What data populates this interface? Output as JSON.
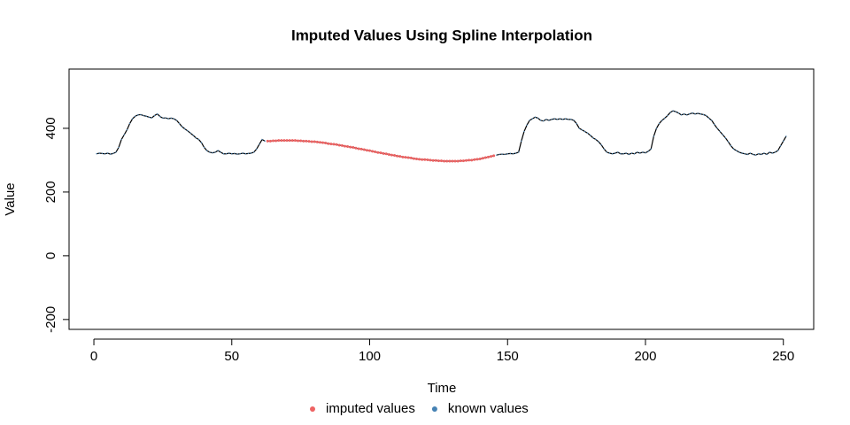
{
  "chart_data": {
    "type": "line",
    "title": "Imputed Values Using Spline Interpolation",
    "x_label": "Time",
    "y_label": "Value",
    "xlim": [
      -9,
      261
    ],
    "ylim": [
      -231,
      586
    ],
    "xticks": [
      0,
      50,
      100,
      150,
      200,
      250
    ],
    "yticks": [
      -200,
      0,
      200,
      400
    ],
    "line_color": "#000000",
    "legend": "bottom",
    "x": [
      1,
      2,
      3,
      4,
      5,
      6,
      7,
      8,
      9,
      10,
      11,
      12,
      13,
      14,
      15,
      16,
      17,
      18,
      19,
      20,
      21,
      22,
      23,
      24,
      25,
      26,
      27,
      28,
      29,
      30,
      31,
      32,
      33,
      34,
      35,
      36,
      37,
      38,
      39,
      40,
      41,
      42,
      43,
      44,
      45,
      46,
      47,
      48,
      49,
      50,
      51,
      52,
      53,
      54,
      55,
      56,
      57,
      58,
      59,
      60,
      61,
      62,
      63,
      64,
      65,
      66,
      67,
      68,
      69,
      70,
      71,
      72,
      73,
      74,
      75,
      76,
      77,
      78,
      79,
      80,
      81,
      82,
      83,
      84,
      85,
      86,
      87,
      88,
      89,
      90,
      91,
      92,
      93,
      94,
      95,
      96,
      97,
      98,
      99,
      100,
      101,
      102,
      103,
      104,
      105,
      106,
      107,
      108,
      109,
      110,
      111,
      112,
      113,
      114,
      115,
      116,
      117,
      118,
      119,
      120,
      121,
      122,
      123,
      124,
      125,
      126,
      127,
      128,
      129,
      130,
      131,
      132,
      133,
      134,
      135,
      136,
      137,
      138,
      139,
      140,
      141,
      142,
      143,
      144,
      145,
      146,
      147,
      148,
      149,
      150,
      151,
      152,
      153,
      154,
      155,
      156,
      157,
      158,
      159,
      160,
      161,
      162,
      163,
      164,
      165,
      166,
      167,
      168,
      169,
      170,
      171,
      172,
      173,
      174,
      175,
      176,
      177,
      178,
      179,
      180,
      181,
      182,
      183,
      184,
      185,
      186,
      187,
      188,
      189,
      190,
      191,
      192,
      193,
      194,
      195,
      196,
      197,
      198,
      199,
      200,
      201,
      202,
      203,
      204,
      205,
      206,
      207,
      208,
      209,
      210,
      211,
      212,
      213,
      214,
      215,
      216,
      217,
      218,
      219,
      220,
      221,
      222,
      223,
      224,
      225,
      226,
      227,
      228,
      229,
      230,
      231,
      232,
      233,
      234,
      235,
      236,
      237,
      238,
      239,
      240,
      241,
      242,
      243,
      244,
      245,
      246,
      247,
      248,
      249,
      250,
      251
    ],
    "series": [
      {
        "name": "imputed values",
        "color": "#EE6363",
        "values": [
          null,
          null,
          null,
          null,
          null,
          null,
          null,
          null,
          null,
          null,
          null,
          null,
          null,
          null,
          null,
          null,
          null,
          null,
          null,
          null,
          null,
          null,
          null,
          null,
          null,
          null,
          null,
          null,
          null,
          null,
          null,
          null,
          null,
          null,
          null,
          null,
          null,
          null,
          null,
          null,
          null,
          null,
          null,
          null,
          null,
          null,
          null,
          null,
          null,
          null,
          null,
          null,
          null,
          null,
          null,
          null,
          null,
          null,
          null,
          null,
          null,
          null,
          360,
          360,
          361,
          361,
          362,
          362,
          362,
          362,
          362,
          362,
          362,
          361,
          361,
          360,
          360,
          359,
          358,
          358,
          357,
          356,
          355,
          354,
          352,
          351,
          350,
          349,
          347,
          346,
          344,
          343,
          341,
          340,
          338,
          336,
          335,
          333,
          331,
          330,
          328,
          326,
          324,
          323,
          321,
          320,
          318,
          316,
          315,
          313,
          312,
          310,
          309,
          308,
          307,
          305,
          304,
          303,
          302,
          302,
          301,
          300,
          299,
          299,
          298,
          298,
          297,
          297,
          297,
          297,
          297,
          297,
          298,
          298,
          299,
          300,
          300,
          302,
          303,
          304,
          306,
          308,
          310,
          312,
          314,
          null,
          null,
          null,
          null,
          null,
          null,
          null,
          null,
          null,
          null,
          null,
          null,
          null,
          null,
          null,
          null,
          null,
          null,
          null,
          null,
          null,
          null,
          null,
          null,
          null,
          null,
          null,
          null,
          null,
          null,
          null,
          null,
          null,
          null,
          null,
          null,
          null,
          null,
          null,
          null,
          null,
          null,
          null,
          null,
          null,
          null,
          null,
          null,
          null,
          null,
          null,
          null,
          null,
          null,
          null,
          null,
          null,
          null,
          null,
          null,
          null,
          null,
          null,
          null,
          null,
          null,
          null,
          null,
          null,
          null,
          null,
          null,
          null,
          null,
          null,
          null,
          null,
          null,
          null,
          null,
          null,
          null,
          null,
          null,
          null,
          null,
          null,
          null,
          null,
          null,
          null,
          null,
          null,
          null,
          null,
          null,
          null,
          null,
          null,
          null,
          null,
          null,
          null,
          null,
          null,
          null
        ]
      },
      {
        "name": "known values",
        "color": "#4682B4",
        "values": [
          320,
          322,
          321,
          320,
          322,
          319,
          321,
          325,
          340,
          365,
          380,
          395,
          415,
          430,
          438,
          442,
          443,
          440,
          438,
          435,
          433,
          440,
          445,
          437,
          432,
          433,
          430,
          432,
          430,
          425,
          415,
          405,
          398,
          392,
          385,
          378,
          370,
          365,
          355,
          340,
          330,
          325,
          323,
          325,
          330,
          325,
          320,
          320,
          322,
          320,
          321,
          319,
          320,
          322,
          320,
          321,
          322,
          325,
          335,
          350,
          365,
          360,
          null,
          null,
          null,
          null,
          null,
          null,
          null,
          null,
          null,
          null,
          null,
          null,
          null,
          null,
          null,
          null,
          null,
          null,
          null,
          null,
          null,
          null,
          null,
          null,
          null,
          null,
          null,
          null,
          null,
          null,
          null,
          null,
          null,
          null,
          null,
          null,
          null,
          null,
          null,
          null,
          null,
          null,
          null,
          null,
          null,
          null,
          null,
          null,
          null,
          null,
          null,
          null,
          null,
          null,
          null,
          null,
          null,
          null,
          null,
          null,
          null,
          null,
          null,
          null,
          null,
          null,
          null,
          null,
          null,
          null,
          null,
          null,
          null,
          null,
          null,
          null,
          null,
          null,
          null,
          null,
          null,
          null,
          null,
          316,
          318,
          319,
          318,
          320,
          321,
          320,
          322,
          325,
          360,
          390,
          410,
          425,
          430,
          435,
          432,
          425,
          423,
          428,
          425,
          428,
          430,
          428,
          430,
          428,
          430,
          428,
          428,
          425,
          415,
          400,
          395,
          390,
          385,
          378,
          370,
          365,
          358,
          348,
          335,
          325,
          322,
          320,
          322,
          325,
          320,
          320,
          322,
          318,
          322,
          320,
          325,
          322,
          325,
          323,
          328,
          335,
          375,
          400,
          415,
          425,
          432,
          440,
          450,
          455,
          452,
          448,
          442,
          445,
          442,
          445,
          448,
          445,
          447,
          445,
          443,
          440,
          432,
          425,
          412,
          400,
          390,
          380,
          370,
          358,
          345,
          335,
          330,
          325,
          322,
          320,
          318,
          322,
          318,
          316,
          320,
          318,
          322,
          318,
          325,
          322,
          325,
          330,
          345,
          360,
          375
        ]
      }
    ]
  }
}
